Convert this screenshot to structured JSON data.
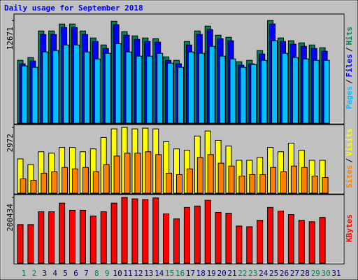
{
  "chart_data": [
    {
      "type": "bar",
      "title": "Daily usage for September 2018",
      "legend_separator": "/",
      "ylim": [
        0,
        13300
      ],
      "yticks": [
        12671
      ],
      "series": [
        {
          "name": "Hits",
          "color": "#00805c",
          "values": [
            7758,
            8103,
            11378,
            11378,
            12240,
            12240,
            11378,
            10516,
            9654,
            12585,
            11292,
            10775,
            10516,
            10430,
            8189,
            7758,
            10085,
            11378,
            11982,
            10861,
            10603,
            7586,
            7758,
            8965,
            12671,
            10516,
            10172,
            9913,
            9654,
            9310,
            null
          ]
        },
        {
          "name": "Files",
          "color": "#0000ff",
          "values": [
            7327,
            7672,
            10947,
            10947,
            11809,
            11809,
            10947,
            10085,
            9223,
            12154,
            10861,
            10344,
            10085,
            9999,
            7758,
            7327,
            9654,
            10947,
            11551,
            10430,
            10172,
            7155,
            7327,
            8534,
            12240,
            10085,
            9741,
            9482,
            9223,
            8879,
            null
          ]
        },
        {
          "name": "Pages",
          "color": "#00c0ff",
          "values": [
            7068,
            6896,
            8792,
            8965,
            9654,
            9654,
            8792,
            7930,
            8620,
            9827,
            8792,
            8275,
            8275,
            8620,
            7413,
            6896,
            8792,
            8620,
            9482,
            8275,
            7930,
            6896,
            7241,
            7758,
            10172,
            8620,
            8103,
            7930,
            7758,
            7758,
            null
          ]
        }
      ]
    },
    {
      "type": "bar",
      "legend_separator": "/",
      "ylim": [
        0,
        3037
      ],
      "yticks": [
        2972
      ],
      "series": [
        {
          "name": "Visits",
          "color": "#ffff00",
          "values": [
            1550,
            1292,
            1873,
            1809,
            2067,
            2067,
            1873,
            2003,
            2519,
            2907,
            2972,
            2907,
            2939,
            2907,
            2326,
            2003,
            1938,
            2584,
            2810,
            2390,
            2132,
            1486,
            1486,
            1615,
            2067,
            1873,
            2261,
            1938,
            1486,
            1486,
            null
          ]
        },
        {
          "name": "Sites",
          "color": "#ff8000",
          "values": [
            646,
            581,
            904,
            969,
            1163,
            1098,
            1163,
            969,
            1292,
            1680,
            1809,
            1809,
            1873,
            1744,
            904,
            840,
            1098,
            1615,
            1744,
            1357,
            1227,
            775,
            840,
            840,
            1163,
            969,
            1227,
            1163,
            775,
            711,
            null
          ]
        }
      ]
    },
    {
      "type": "bar",
      "ylim": [
        0,
        204792
      ],
      "yticks": [
        200434
      ],
      "categories": [
        "1",
        "2",
        "3",
        "4",
        "5",
        "6",
        "7",
        "8",
        "9",
        "10",
        "11",
        "12",
        "13",
        "14",
        "15",
        "16",
        "17",
        "18",
        "19",
        "20",
        "21",
        "22",
        "23",
        "24",
        "25",
        "26",
        "27",
        "28",
        "29",
        "30",
        "31"
      ],
      "category_colors": [
        "#00805c",
        "#00805c",
        "#000080",
        "#000080",
        "#000080",
        "#000080",
        "#000080",
        "#00805c",
        "#00805c",
        "#000080",
        "#000080",
        "#000080",
        "#000080",
        "#000080",
        "#00805c",
        "#00805c",
        "#000080",
        "#000080",
        "#000080",
        "#000080",
        "#000080",
        "#00805c",
        "#00805c",
        "#000080",
        "#000080",
        "#000080",
        "#000080",
        "#000080",
        "#00805c",
        "#00805c",
        "#000080"
      ],
      "series": [
        {
          "name": "KBytes",
          "color": "#ff0000",
          "values": [
            117644,
            117644,
            156859,
            156859,
            183002,
            161216,
            161216,
            143788,
            156859,
            183002,
            200434,
            196074,
            193895,
            199000,
            150323,
            135073,
            169931,
            174288,
            191717,
            154681,
            152502,
            113287,
            111109,
            130716,
            169931,
            159038,
            148145,
            130716,
            126359,
            139430,
            null
          ]
        }
      ]
    }
  ]
}
